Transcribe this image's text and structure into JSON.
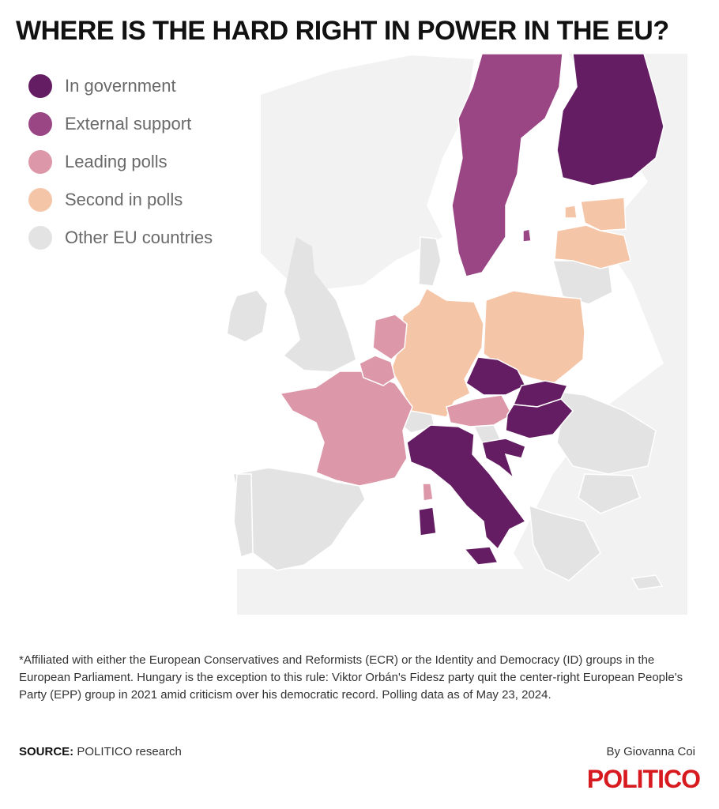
{
  "title": "WHERE IS THE HARD RIGHT IN POWER IN THE EU?",
  "legend": [
    {
      "label": "In government",
      "color": "#641d63"
    },
    {
      "label": "External support",
      "color": "#9a4584"
    },
    {
      "label": "Leading polls",
      "color": "#dc98a8"
    },
    {
      "label": "Second in polls",
      "color": "#f5c5a8"
    },
    {
      "label": "Other EU countries",
      "color": "#e3e3e3"
    }
  ],
  "countries": {
    "in_government": [
      "Finland",
      "Italy",
      "Czech Republic",
      "Slovakia",
      "Hungary",
      "Croatia"
    ],
    "external_support": [
      "Sweden"
    ],
    "leading_polls": [
      "France",
      "Belgium",
      "Netherlands",
      "Austria",
      "Luxembourg"
    ],
    "second_in_polls": [
      "Germany",
      "Poland",
      "Estonia",
      "Latvia"
    ]
  },
  "footnote": "*Affiliated with either the European Conservatives and Reformists (ECR) or the Identity and Democracy (ID) groups in the European Parliament. Hungary is the exception to this rule: Viktor Orbán's Fidesz party quit the center-right European People's Party (EPP) group in 2021 amid criticism over his democratic record. Polling data as of May 23, 2024.",
  "source_label": "SOURCE:",
  "source_text": "POLITICO research",
  "byline": "By Giovanna Coi",
  "logo": "POLITICO"
}
